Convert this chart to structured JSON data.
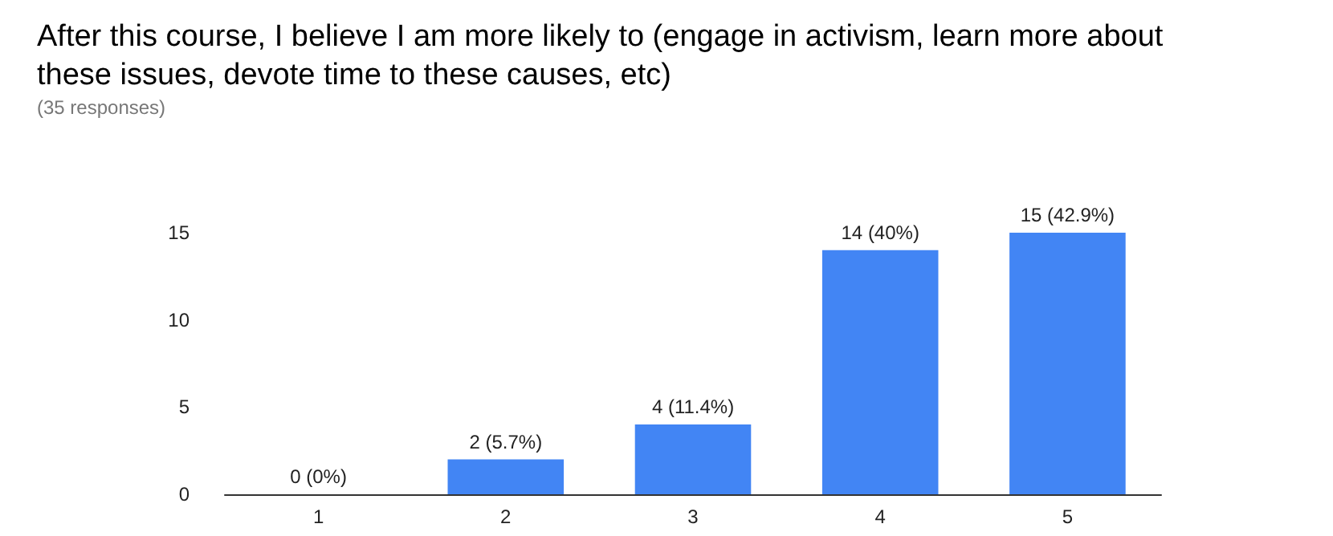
{
  "chart_data": {
    "type": "bar",
    "title": "After this course, I believe I am more likely to (engage in activism, learn more about these issues, devote time to these causes, etc)",
    "subtitle": "(35 responses)",
    "categories": [
      "1",
      "2",
      "3",
      "4",
      "5"
    ],
    "values": [
      0,
      2,
      4,
      14,
      15
    ],
    "value_labels": [
      "0 (0%)",
      "2 (5.7%)",
      "4 (11.4%)",
      "14 (40%)",
      "15 (42.9%)"
    ],
    "color": "#4285f4",
    "ylim": [
      0,
      15
    ],
    "yticks": [
      0,
      5,
      10,
      15
    ],
    "grid": false
  }
}
